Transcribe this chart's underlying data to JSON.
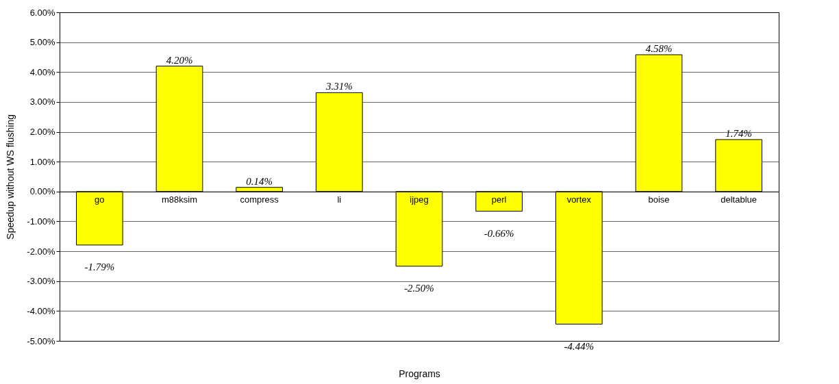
{
  "chart_data": {
    "type": "bar",
    "xlabel": "Programs",
    "ylabel": "Speedup without WS flushing",
    "categories": [
      "go",
      "m88ksim",
      "compress",
      "li",
      "ijpeg",
      "perl",
      "vortex",
      "boise",
      "deltablue"
    ],
    "values": [
      -1.79,
      4.2,
      0.14,
      3.31,
      -2.5,
      -0.66,
      -4.44,
      4.58,
      1.74
    ],
    "value_labels": [
      "-1.79%",
      "4.20%",
      "0.14%",
      "3.31%",
      "-2.50%",
      "-0.66%",
      "-4.44%",
      "4.58%",
      "1.74%"
    ],
    "color": "#ffff00",
    "ylim": [
      -5,
      6
    ],
    "yticks": [
      {
        "value": -5,
        "label": "-5.00%"
      },
      {
        "value": -4,
        "label": "-4.00%"
      },
      {
        "value": -3,
        "label": "-3.00%"
      },
      {
        "value": -2,
        "label": "-2.00%"
      },
      {
        "value": -1,
        "label": "-1.00%"
      },
      {
        "value": 0,
        "label": "0.00%"
      },
      {
        "value": 1,
        "label": "1.00%"
      },
      {
        "value": 2,
        "label": "2.00%"
      },
      {
        "value": 3,
        "label": "3.00%"
      },
      {
        "value": 4,
        "label": "4.00%"
      },
      {
        "value": 5,
        "label": "5.00%"
      },
      {
        "value": 6,
        "label": "6.00%"
      }
    ],
    "grid": "y"
  }
}
